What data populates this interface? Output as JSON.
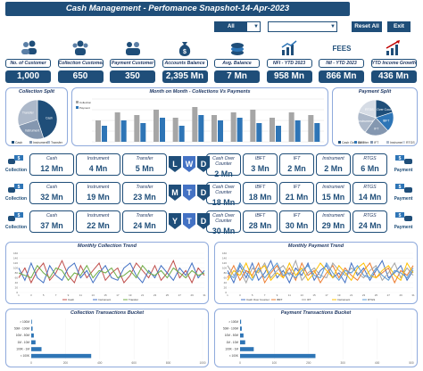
{
  "header": {
    "title": "Cash Management - Perfomance Snapshot-14-Apr-2023",
    "filter_all": "All",
    "reset_label": "Reset All",
    "exit_label": "Exit",
    "accent": "#1f4e79"
  },
  "kpis": [
    {
      "label": "No. of Customer",
      "value": "1,000",
      "icon": "users-icon"
    },
    {
      "label": "Collection Customer",
      "value": "650",
      "icon": "collection-customers-icon"
    },
    {
      "label": "Payment Customer",
      "value": "350",
      "icon": "payment-customers-icon"
    },
    {
      "label": "Accounts Balance",
      "value": "2,395 Mn",
      "icon": "money-bag-icon"
    },
    {
      "label": "Avg. Balance",
      "value": "7 Mn",
      "icon": "coins-icon"
    },
    {
      "label": "NFI - YTD 2023",
      "value": "958 Mn",
      "icon": "nfi-chart-icon"
    },
    {
      "label": "NII - YTD 2023",
      "value": "866 Mn",
      "icon": "fees-icon"
    },
    {
      "label": "YTD Income Growth",
      "value": "436 Mn",
      "icon": "growth-chart-icon"
    }
  ],
  "panels": {
    "collection_split": "Collection Split",
    "mom": "Month on Month - Collections Vs Payments",
    "payment_split": "Payment Split",
    "monthly_collection": "Monthly Collection Trend",
    "monthly_payment": "Monthly Payment Trend",
    "collection_bucket": "Collection Transactions Bucket",
    "payment_bucket": "Payment Transactions Bucket"
  },
  "metrics": {
    "collection_label": "Collection",
    "payment_label": "Payment",
    "rows": [
      {
        "badges": [
          "L",
          "W",
          "D"
        ],
        "left": [
          {
            "l": "Cash",
            "v": "12 Mn"
          },
          {
            "l": "Instrument",
            "v": "4 Mn"
          },
          {
            "l": "Transfer",
            "v": "5 Mn"
          }
        ],
        "right": [
          {
            "l": "Cash Over Counter",
            "v": "2 Mn"
          },
          {
            "l": "IBFT",
            "v": "3 Mn"
          },
          {
            "l": "IFT",
            "v": "2 Mn"
          },
          {
            "l": "Instrument",
            "v": "2 Mn"
          },
          {
            "l": "RTGS",
            "v": "6 Mn"
          }
        ]
      },
      {
        "badges": [
          "M",
          "T",
          "D"
        ],
        "left": [
          {
            "l": "Cash",
            "v": "32 Mn"
          },
          {
            "l": "Instrument",
            "v": "19 Mn"
          },
          {
            "l": "Transfer",
            "v": "23 Mn"
          }
        ],
        "right": [
          {
            "l": "Cash Over Counter",
            "v": "18 Mn"
          },
          {
            "l": "IBFT",
            "v": "18 Mn"
          },
          {
            "l": "IFT",
            "v": "21 Mn"
          },
          {
            "l": "Instrument",
            "v": "15 Mn"
          },
          {
            "l": "RTGS",
            "v": "14 Mn"
          }
        ]
      },
      {
        "badges": [
          "Y",
          "T",
          "D"
        ],
        "left": [
          {
            "l": "Cash",
            "v": "37 Mn"
          },
          {
            "l": "Instrument",
            "v": "22 Mn"
          },
          {
            "l": "Transfer",
            "v": "24 Mn"
          }
        ],
        "right": [
          {
            "l": "Cash Over Counter",
            "v": "30 Mn"
          },
          {
            "l": "IBFT",
            "v": "28 Mn"
          },
          {
            "l": "IFT",
            "v": "30 Mn"
          },
          {
            "l": "Instrument",
            "v": "29 Mn"
          },
          {
            "l": "RTGS",
            "v": "24 Mn"
          }
        ]
      }
    ]
  },
  "chart_data": [
    {
      "type": "pie",
      "labels": [
        "Cash",
        "Instrument",
        "Transfer"
      ],
      "values": [
        45,
        25,
        30
      ],
      "colors": [
        "#1f4e79",
        "#8497b0",
        "#adb9ca"
      ]
    },
    {
      "type": "bar",
      "categories": [
        "1",
        "2",
        "3",
        "4",
        "5",
        "6",
        "7",
        "8",
        "9",
        "10",
        "11",
        "12"
      ],
      "series": [
        {
          "name": "Collection",
          "values": [
            40,
            55,
            50,
            60,
            45,
            65,
            50,
            55,
            60,
            45,
            55,
            50
          ],
          "color": "#a6a6a6"
        },
        {
          "name": "Payment",
          "values": [
            30,
            40,
            35,
            45,
            30,
            50,
            40,
            45,
            35,
            30,
            40,
            35
          ],
          "color": "#2e75b6"
        }
      ],
      "ylim": [
        0,
        80
      ]
    },
    {
      "type": "pie",
      "labels": [
        "Cash Over Counter",
        "IBFT",
        "IFT",
        "Instrument",
        "RTGS"
      ],
      "values": [
        20,
        18,
        22,
        20,
        20
      ],
      "colors": [
        "#1f4e79",
        "#2e75b6",
        "#8497b0",
        "#adb9ca",
        "#d6dce5"
      ]
    },
    {
      "type": "line",
      "x": [
        1,
        2,
        3,
        4,
        5,
        6,
        7,
        8,
        9,
        10,
        11,
        12,
        13,
        14,
        15,
        16,
        17,
        18,
        19,
        20,
        21,
        22,
        23,
        24,
        25,
        26,
        27,
        28,
        29,
        30,
        31
      ],
      "ylim": [
        0,
        160
      ],
      "series": [
        {
          "name": "Cash",
          "color": "#c0504d",
          "values": [
            60,
            100,
            40,
            90,
            120,
            50,
            80,
            130,
            70,
            40,
            110,
            60,
            90,
            120,
            50,
            80,
            100,
            40,
            70,
            120,
            90,
            60,
            110,
            50,
            80,
            130,
            60,
            90,
            40,
            100,
            70
          ]
        },
        {
          "name": "Instrument",
          "color": "#4472c4",
          "values": [
            100,
            50,
            120,
            60,
            40,
            110,
            70,
            50,
            100,
            120,
            60,
            90,
            40,
            80,
            110,
            60,
            50,
            100,
            120,
            70,
            40,
            90,
            60,
            110,
            80,
            50,
            100,
            70,
            120,
            60,
            90
          ]
        },
        {
          "name": "Transfer",
          "color": "#70ad47",
          "values": [
            80,
            70,
            60,
            110,
            80,
            60,
            100,
            90,
            50,
            80,
            70,
            110,
            60,
            90,
            80,
            100,
            60,
            70,
            90,
            60,
            110,
            80,
            70,
            90,
            60,
            100,
            80,
            60,
            90,
            70,
            80
          ]
        }
      ]
    },
    {
      "type": "line",
      "x": [
        1,
        2,
        3,
        4,
        5,
        6,
        7,
        8,
        9,
        10,
        11,
        12,
        13,
        14,
        15,
        16,
        17,
        18,
        19,
        20,
        21,
        22,
        23,
        24,
        25,
        26,
        27,
        28,
        29,
        30,
        31
      ],
      "ylim": [
        0,
        160
      ],
      "series": [
        {
          "name": "Cash Over Counter",
          "color": "#4472c4",
          "values": [
            90,
            40,
            110,
            60,
            120,
            50,
            80,
            130,
            60,
            90,
            40,
            100,
            70,
            120,
            50,
            90,
            110,
            60,
            80,
            40,
            120,
            70,
            100,
            50,
            90,
            130,
            60,
            80,
            110,
            50,
            90
          ]
        },
        {
          "name": "IBFT",
          "color": "#ed7d31",
          "values": [
            60,
            110,
            50,
            90,
            70,
            120,
            40,
            80,
            110,
            60,
            100,
            50,
            120,
            70,
            90,
            40,
            80,
            110,
            60,
            100,
            70,
            50,
            90,
            120,
            60,
            80,
            100,
            40,
            90,
            70,
            110
          ]
        },
        {
          "name": "IFT",
          "color": "#a5a5a5",
          "values": [
            110,
            70,
            90,
            40,
            100,
            80,
            120,
            60,
            90,
            110,
            70,
            130,
            50,
            80,
            100,
            70,
            60,
            120,
            90,
            70,
            100,
            80,
            60,
            90,
            110,
            50,
            80,
            120,
            60,
            100,
            70
          ]
        },
        {
          "name": "Instrument",
          "color": "#ffc000",
          "values": [
            50,
            90,
            70,
            120,
            60,
            90,
            110,
            50,
            80,
            60,
            120,
            70,
            100,
            50,
            80,
            120,
            90,
            60,
            110,
            80,
            50,
            100,
            120,
            70,
            60,
            90,
            110,
            70,
            50,
            120,
            80
          ]
        },
        {
          "name": "RTGS",
          "color": "#5b9bd5",
          "values": [
            80,
            60,
            120,
            80,
            50,
            100,
            60,
            90,
            120,
            70,
            80,
            60,
            90,
            110,
            70,
            60,
            120,
            80,
            50,
            90,
            80,
            110,
            70,
            60,
            100,
            70,
            50,
            90,
            80,
            60,
            100
          ]
        }
      ]
    },
    {
      "type": "bar",
      "orientation": "horizontal",
      "categories": [
        "< 100K",
        "100K - 1M",
        "1M - 10M",
        "10M - 50M",
        "50M - 100M",
        "> 100M"
      ],
      "values": [
        350,
        60,
        25,
        15,
        8,
        4
      ],
      "xlim": [
        0,
        1000
      ],
      "xticks": [
        "0",
        "200",
        "400",
        "600",
        "800",
        "1000"
      ]
    },
    {
      "type": "bar",
      "orientation": "horizontal",
      "categories": [
        "< 100K",
        "100K - 1M",
        "1M - 10M",
        "10M - 50M",
        "50M - 100M",
        "> 100M"
      ],
      "values": [
        220,
        40,
        15,
        10,
        5,
        3
      ],
      "xlim": [
        0,
        500
      ],
      "xticks": [
        "0",
        "100",
        "200",
        "300",
        "400",
        "500"
      ]
    }
  ]
}
